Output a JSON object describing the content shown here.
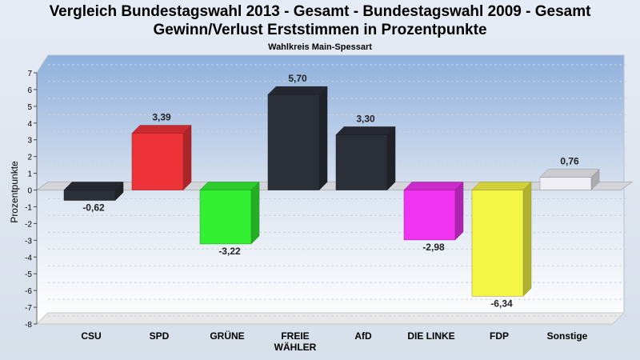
{
  "title": "Vergleich Bundestagswahl 2013 - Gesamt - Bundestagswahl 2009 - Gesamt",
  "subtitle": "Gewinn/Verlust Erststimmen in Prozentpunkte",
  "region": "Wahlkreis Main-Spessart",
  "chart_data": {
    "type": "bar",
    "title": "Vergleich Bundestagswahl 2013 - Gesamt - Bundestagswahl 2009 - Gesamt",
    "subtitle": "Gewinn/Verlust Erststimmen in Prozentpunkte",
    "ylabel": "Prozentpunkte",
    "xlabel": "",
    "ylim": [
      -8,
      7
    ],
    "yticks": [
      7,
      6,
      5,
      4,
      3,
      2,
      1,
      0,
      -1,
      -2,
      -3,
      -4,
      -5,
      -6,
      -7,
      -8
    ],
    "grid": true,
    "categories": [
      "CSU",
      "SPD",
      "GRÜNE",
      "FREIE WÄHLER",
      "AfD",
      "DIE LINKE",
      "FDP",
      "Sonstige"
    ],
    "category_lines": [
      [
        "CSU"
      ],
      [
        "SPD"
      ],
      [
        "GRÜNE"
      ],
      [
        "FREIE",
        "WÄHLER"
      ],
      [
        "AfD"
      ],
      [
        "DIE LINKE"
      ],
      [
        "FDP"
      ],
      [
        "Sonstige"
      ]
    ],
    "values": [
      -0.62,
      3.39,
      -3.22,
      5.7,
      3.3,
      -2.98,
      -6.34,
      0.76
    ],
    "labels": [
      "-0,62",
      "3,39",
      "-3,22",
      "5,70",
      "3,30",
      "-2,98",
      "-6,34",
      "0,76"
    ],
    "colors": [
      "#2b2f38",
      "#ee3338",
      "#33f033",
      "#2b2f38",
      "#2b2f38",
      "#f033f0",
      "#f5f545",
      "#eeeef5"
    ]
  }
}
